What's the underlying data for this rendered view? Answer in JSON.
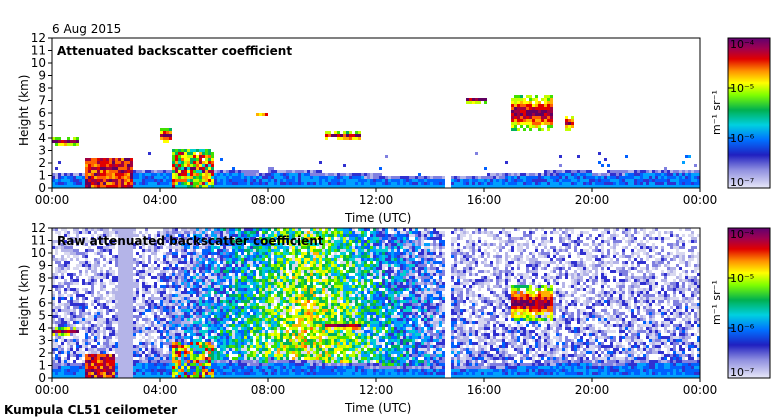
{
  "date": "6 Aug 2015",
  "footer": "Kumpula CL51 ceilometer",
  "colors": {
    "scale": [
      "#d8d8f0",
      "#b4b4e8",
      "#8080e0",
      "#3030d0",
      "#0060ff",
      "#00a0ff",
      "#00d0d0",
      "#00b060",
      "#40e000",
      "#c0ff00",
      "#ffff00",
      "#ffb000",
      "#ff6000",
      "#e00000",
      "#a00040",
      "#600060"
    ]
  },
  "chart_data": [
    {
      "type": "heatmap",
      "title": "Attenuated backscatter coefficient",
      "xlabel": "Time (UTC)",
      "ylabel": "Height (km)",
      "x_ticks": [
        "00:00",
        "04:00",
        "08:00",
        "12:00",
        "16:00",
        "20:00",
        "00:00"
      ],
      "y_ticks": [
        "0",
        "1",
        "2",
        "3",
        "4",
        "5",
        "6",
        "7",
        "8",
        "9",
        "10",
        "11",
        "12"
      ],
      "ylim": [
        0,
        12
      ],
      "xlim_hours": [
        0,
        24
      ],
      "colorbar": {
        "label": "m⁻¹ sr⁻¹",
        "ticks": [
          "10⁻⁷",
          "10⁻⁶",
          "10⁻⁵",
          "10⁻⁴"
        ],
        "range_log10": [
          -7,
          -4
        ]
      },
      "data_gap_hours": [
        14.6,
        14.8
      ],
      "features": [
        {
          "name": "boundary layer",
          "t_start": 0,
          "t_end": 24,
          "top_km": 1.5
        },
        {
          "name": "low cloud",
          "t_start": 1.2,
          "t_end": 3.0,
          "base_km": 0.1,
          "top_km": 2.3
        },
        {
          "name": "low cloud",
          "t_start": 4.5,
          "t_end": 6.0,
          "base_km": 0.1,
          "top_km": 3.0
        },
        {
          "name": "cloud layer",
          "t_start": 0.0,
          "t_end": 1.0,
          "base_km": 3.4,
          "top_km": 4.0
        },
        {
          "name": "cloud layer",
          "t_start": 4.0,
          "t_end": 4.4,
          "base_km": 3.6,
          "top_km": 4.8
        },
        {
          "name": "cloud layer",
          "t_start": 7.6,
          "t_end": 8.0,
          "base_km": 5.8,
          "top_km": 6.1
        },
        {
          "name": "cloud layer",
          "t_start": 10.1,
          "t_end": 11.4,
          "base_km": 3.8,
          "top_km": 4.5
        },
        {
          "name": "cloud layer",
          "t_start": 15.3,
          "t_end": 16.1,
          "base_km": 6.8,
          "top_km": 7.3
        },
        {
          "name": "cloud layer",
          "t_start": 17.0,
          "t_end": 18.5,
          "base_km": 4.5,
          "top_km": 7.5
        },
        {
          "name": "cloud layer",
          "t_start": 19.0,
          "t_end": 19.3,
          "base_km": 4.6,
          "top_km": 5.8
        }
      ]
    },
    {
      "type": "heatmap",
      "title": "Raw attenuated backscatter coefficient",
      "xlabel": "Time (UTC)",
      "ylabel": "Height (km)",
      "x_ticks": [
        "00:00",
        "04:00",
        "08:00",
        "12:00",
        "16:00",
        "20:00",
        "00:00"
      ],
      "y_ticks": [
        "0",
        "1",
        "2",
        "3",
        "4",
        "5",
        "6",
        "7",
        "8",
        "9",
        "10",
        "11",
        "12"
      ],
      "ylim": [
        0,
        12
      ],
      "xlim_hours": [
        0,
        24
      ],
      "colorbar": {
        "label": "m⁻¹ sr⁻¹",
        "ticks": [
          "10⁻⁷",
          "10⁻⁶",
          "10⁻⁵",
          "10⁻⁴"
        ],
        "range_log10": [
          -7,
          -4
        ]
      },
      "data_gap_hours": [
        14.6,
        14.8
      ],
      "features": [
        {
          "name": "noisy daytime background",
          "t_start": 6,
          "t_end": 13,
          "level_log10": -5.3
        },
        {
          "name": "boundary layer",
          "t_start": 0,
          "t_end": 24,
          "top_km": 1.5
        },
        {
          "name": "cloud layer",
          "t_start": 0.0,
          "t_end": 1.0,
          "base_km": 3.4,
          "top_km": 4.0
        },
        {
          "name": "cloud layer",
          "t_start": 10.1,
          "t_end": 11.4,
          "base_km": 3.8,
          "top_km": 4.5
        },
        {
          "name": "cloud layer",
          "t_start": 17.0,
          "t_end": 18.5,
          "base_km": 4.5,
          "top_km": 7.5
        }
      ]
    }
  ]
}
